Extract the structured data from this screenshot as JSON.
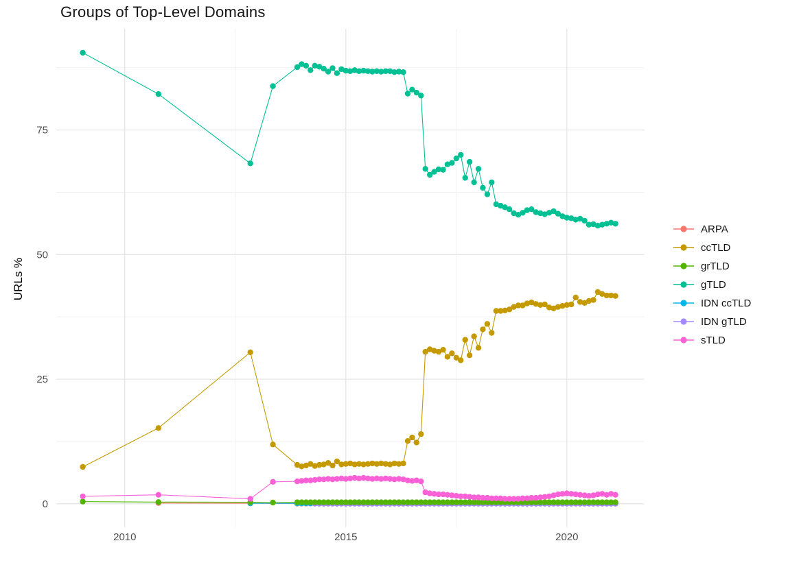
{
  "page": {
    "background": "#ffffff"
  },
  "chart_data": {
    "type": "line",
    "title": "Groups of Top-Level Domains",
    "xlabel": "",
    "ylabel": "URLs %",
    "x_ticks": [
      2010,
      2015,
      2020
    ],
    "x_minor_ticks": [
      2012.5,
      2017.5
    ],
    "y_ticks": [
      0,
      25,
      50,
      75
    ],
    "y_minor_ticks": [
      12.5,
      37.5,
      62.5,
      87.5
    ],
    "xlim": [
      2008.45,
      2021.75
    ],
    "ylim": [
      -4.7,
      95.3
    ],
    "grid": true,
    "legend_position": "right",
    "grid_major_color": "#e6e6e6",
    "grid_minor_color": "#f0f0f0",
    "dense_t": [
      2013.9,
      2014.0,
      2014.1,
      2014.2,
      2014.3,
      2014.4,
      2014.5,
      2014.6,
      2014.7,
      2014.8,
      2014.9,
      2015.0,
      2015.1,
      2015.2,
      2015.3,
      2015.4,
      2015.5,
      2015.6,
      2015.7,
      2015.8,
      2015.9,
      2016.0,
      2016.1,
      2016.2,
      2016.3,
      2016.4,
      2016.5,
      2016.6,
      2016.7,
      2016.8,
      2016.9,
      2017.0,
      2017.1,
      2017.2,
      2017.3,
      2017.4,
      2017.5,
      2017.6,
      2017.7,
      2017.8,
      2017.9,
      2018.0,
      2018.1,
      2018.2,
      2018.3,
      2018.4,
      2018.5,
      2018.6,
      2018.7,
      2018.8,
      2018.9,
      2019.0,
      2019.1,
      2019.2,
      2019.3,
      2019.4,
      2019.5,
      2019.6,
      2019.7,
      2019.8,
      2019.9,
      2020.0,
      2020.1,
      2020.2,
      2020.3,
      2020.4,
      2020.5,
      2020.6,
      2020.7,
      2020.8,
      2020.9,
      2021.0,
      2021.1
    ],
    "series": [
      {
        "name": "ARPA",
        "color": "#F8766D",
        "early": [
          [
            2010.76,
            0.15
          ],
          [
            2012.84,
            0.1
          ]
        ],
        "dense_const": {
          "from": 2013.9,
          "to": 2021.1,
          "step": 0.1,
          "value": 0.05
        }
      },
      {
        "name": "ccTLD",
        "color": "#C49A00",
        "early": [
          [
            2009.05,
            7.4
          ],
          [
            2010.76,
            15.2
          ],
          [
            2012.84,
            30.4
          ],
          [
            2013.35,
            11.9
          ]
        ],
        "dense_values": [
          7.8,
          7.5,
          7.7,
          8.0,
          7.6,
          7.8,
          7.9,
          8.2,
          7.7,
          8.5,
          7.9,
          8.0,
          8.1,
          7.9,
          8.0,
          7.9,
          8.0,
          8.1,
          8.0,
          8.1,
          8.0,
          7.9,
          8.1,
          8.0,
          8.1,
          12.6,
          13.3,
          12.3,
          14.0,
          30.5,
          31.0,
          30.7,
          30.5,
          30.9,
          29.5,
          30.2,
          29.3,
          28.8,
          32.9,
          29.8,
          33.6,
          31.3,
          35.0,
          36.1,
          34.3,
          38.7,
          38.7,
          38.8,
          39.0,
          39.5,
          39.8,
          39.8,
          40.2,
          40.4,
          40.1,
          39.9,
          40.0,
          39.4,
          39.2,
          39.5,
          39.7,
          39.9,
          40.0,
          41.4,
          40.5,
          40.3,
          40.7,
          40.9,
          42.5,
          42.1,
          41.8,
          41.8,
          41.7
        ]
      },
      {
        "name": "grTLD",
        "color": "#53B400",
        "early": [
          [
            2009.05,
            0.45
          ],
          [
            2010.76,
            0.35
          ],
          [
            2012.84,
            0.3
          ],
          [
            2013.35,
            0.25
          ]
        ],
        "dense_const": {
          "from": 2013.9,
          "to": 2021.1,
          "step": 0.1,
          "value": 0.3
        }
      },
      {
        "name": "gTLD",
        "color": "#00C094",
        "early": [
          [
            2009.05,
            90.5
          ],
          [
            2010.76,
            82.2
          ],
          [
            2012.84,
            68.3
          ],
          [
            2013.35,
            83.8
          ]
        ],
        "dense_values": [
          87.6,
          88.2,
          87.9,
          87.0,
          87.9,
          87.7,
          87.3,
          86.7,
          87.4,
          86.4,
          87.2,
          86.9,
          86.8,
          87.0,
          86.8,
          86.9,
          86.8,
          86.7,
          86.8,
          86.7,
          86.8,
          86.8,
          86.6,
          86.7,
          86.6,
          82.3,
          83.1,
          82.5,
          81.9,
          67.2,
          66.0,
          66.6,
          67.1,
          67.0,
          68.1,
          68.4,
          69.3,
          70.0,
          65.4,
          68.6,
          64.5,
          67.2,
          63.4,
          62.1,
          64.5,
          60.1,
          59.8,
          59.5,
          59.1,
          58.3,
          58.0,
          58.4,
          58.9,
          59.1,
          58.5,
          58.3,
          58.1,
          58.4,
          58.7,
          58.2,
          57.7,
          57.4,
          57.3,
          57.0,
          57.2,
          56.8,
          56.0,
          56.1,
          55.8,
          56.0,
          56.2,
          56.4,
          56.2
        ]
      },
      {
        "name": "IDN ccTLD",
        "color": "#00B6EB",
        "early": [
          [
            2012.84,
            0.1
          ]
        ],
        "dense_const": {
          "from": 2013.9,
          "to": 2021.1,
          "step": 0.1,
          "value": 0.08
        }
      },
      {
        "name": "IDN gTLD",
        "color": "#A58AFF",
        "early": [],
        "dense_const": {
          "from": 2014.3,
          "to": 2021.1,
          "step": 0.1,
          "value": 0.02
        }
      },
      {
        "name": "sTLD",
        "color": "#FB61D7",
        "early": [
          [
            2009.05,
            1.5
          ],
          [
            2010.76,
            1.8
          ],
          [
            2012.84,
            1.0
          ],
          [
            2013.35,
            4.4
          ]
        ],
        "dense_values": [
          4.5,
          4.6,
          4.7,
          4.7,
          4.8,
          4.9,
          4.9,
          5.0,
          4.9,
          5.0,
          5.1,
          5.0,
          5.1,
          5.2,
          5.1,
          5.2,
          5.1,
          5.0,
          5.1,
          5.0,
          5.1,
          5.0,
          4.9,
          5.0,
          4.9,
          4.7,
          4.6,
          4.7,
          4.5,
          2.3,
          2.1,
          2.0,
          1.9,
          1.9,
          1.8,
          1.7,
          1.6,
          1.5,
          1.5,
          1.4,
          1.3,
          1.3,
          1.2,
          1.2,
          1.1,
          1.1,
          1.1,
          1.0,
          1.0,
          1.0,
          1.0,
          1.1,
          1.1,
          1.2,
          1.2,
          1.3,
          1.4,
          1.5,
          1.7,
          1.9,
          2.0,
          2.1,
          2.0,
          1.9,
          1.8,
          1.7,
          1.6,
          1.7,
          1.9,
          2.0,
          1.8,
          2.0,
          1.8
        ]
      }
    ]
  }
}
